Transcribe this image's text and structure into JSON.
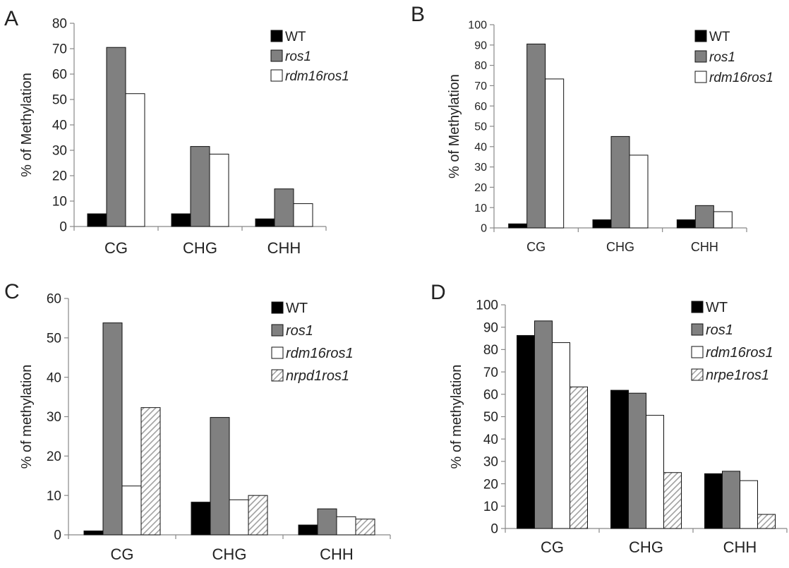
{
  "colors": {
    "WT": "#000000",
    "ros1": "#808080",
    "rdm16ros1": "#ffffff",
    "hatched": "#a0a0a0",
    "axis": "#888888",
    "text": "#222222"
  },
  "chart_data": [
    {
      "panel": "A",
      "type": "bar",
      "ylabel": "% of Methylation",
      "ylim": [
        0,
        80
      ],
      "ytick_step": 10,
      "categories": [
        "CG",
        "CHG",
        "CHH"
      ],
      "legend_position": "top-right",
      "series": [
        {
          "name": "WT",
          "fill": "solid-black",
          "values": [
            5,
            5,
            3
          ]
        },
        {
          "name": "ros1",
          "fill": "solid-gray",
          "values": [
            70.5,
            31.5,
            14.8
          ]
        },
        {
          "name": "rdm16ros1",
          "fill": "white",
          "values": [
            52.3,
            28.5,
            9
          ]
        }
      ]
    },
    {
      "panel": "B",
      "type": "bar",
      "ylabel": "% of Methylation",
      "ylim": [
        0,
        100
      ],
      "ytick_step": 10,
      "categories": [
        "CG",
        "CHG",
        "CHH"
      ],
      "legend_position": "top-right",
      "series": [
        {
          "name": "WT",
          "fill": "solid-black",
          "values": [
            2,
            4,
            4
          ]
        },
        {
          "name": "ros1",
          "fill": "solid-gray",
          "values": [
            90.5,
            45,
            11
          ]
        },
        {
          "name": "rdm16ros1",
          "fill": "white",
          "values": [
            73.3,
            35.8,
            8
          ]
        }
      ]
    },
    {
      "panel": "C",
      "type": "bar",
      "ylabel": "% of methylation",
      "ylim": [
        0,
        60
      ],
      "ytick_step": 10,
      "categories": [
        "CG",
        "CHG",
        "CHH"
      ],
      "legend_position": "top-right",
      "series": [
        {
          "name": "WT",
          "fill": "solid-black",
          "values": [
            1,
            8.3,
            2.5
          ]
        },
        {
          "name": "ros1",
          "fill": "solid-gray",
          "values": [
            53.8,
            29.8,
            6.6
          ]
        },
        {
          "name": "rdm16ros1",
          "fill": "white",
          "values": [
            12.4,
            8.9,
            4.6
          ]
        },
        {
          "name": "nrpd1ros1",
          "fill": "hatched",
          "values": [
            32.3,
            10,
            4
          ]
        }
      ]
    },
    {
      "panel": "D",
      "type": "bar",
      "ylabel": "% of methylation",
      "ylim": [
        0,
        100
      ],
      "ytick_step": 10,
      "categories": [
        "CG",
        "CHG",
        "CHH"
      ],
      "legend_position": "top-right",
      "series": [
        {
          "name": "WT",
          "fill": "solid-black",
          "values": [
            86.3,
            61.8,
            24.5
          ]
        },
        {
          "name": "ros1",
          "fill": "solid-gray",
          "values": [
            92.8,
            60.5,
            25.6
          ]
        },
        {
          "name": "rdm16ros1",
          "fill": "white",
          "values": [
            83.1,
            50.6,
            21.4
          ]
        },
        {
          "name": "nrpe1ros1",
          "fill": "hatched",
          "values": [
            63.3,
            25,
            6.3
          ]
        }
      ]
    }
  ]
}
